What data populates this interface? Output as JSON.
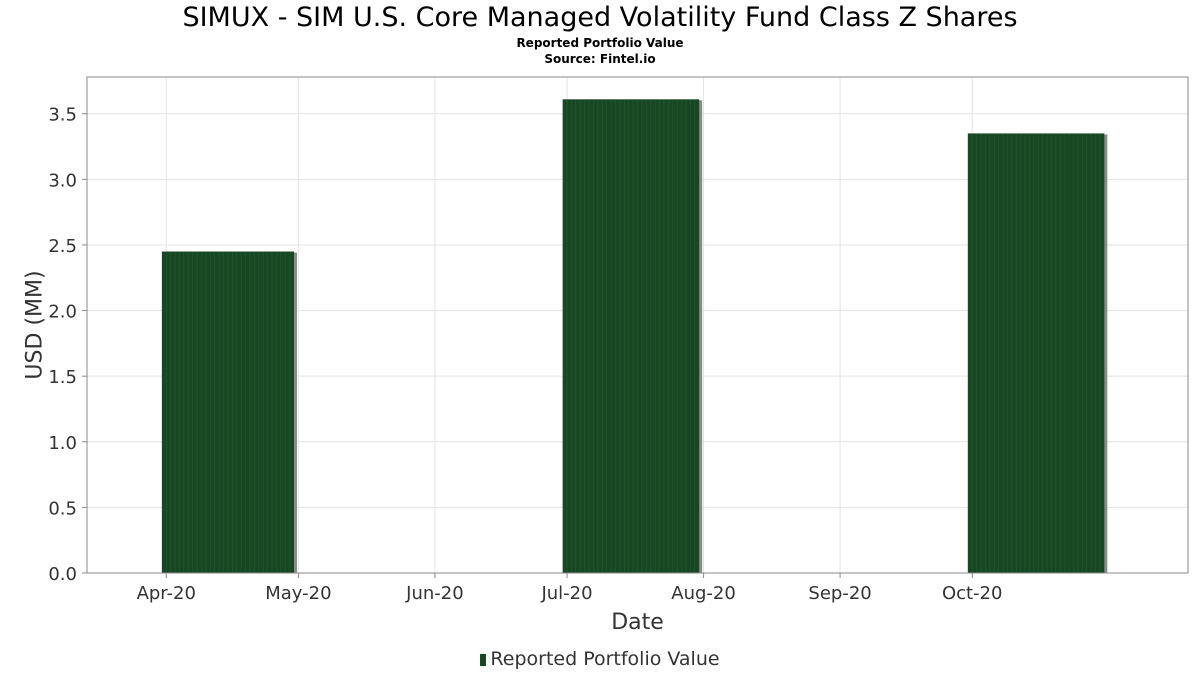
{
  "chart_data": {
    "type": "bar",
    "title": "SIMUX - SIM U.S. Core Managed Volatility Fund Class Z Shares",
    "subtitle": "Reported Portfolio Value",
    "source": "Source: Fintel.io",
    "xlabel": "Date",
    "ylabel": "USD (MM)",
    "x_ticks": [
      "Apr-20",
      "May-20",
      "Jun-20",
      "Jul-20",
      "Aug-20",
      "Sep-20",
      "Oct-20"
    ],
    "y_ticks": [
      "0.0",
      "0.5",
      "1.0",
      "1.5",
      "2.0",
      "2.5",
      "3.0",
      "3.5"
    ],
    "ylim": [
      0,
      3.78
    ],
    "grid": true,
    "legend_position": "bottom-center",
    "series": [
      {
        "name": "Reported Portfolio Value",
        "color": "#1a4723",
        "bars": [
          {
            "start": "2020-03-31",
            "end": "2020-04-30",
            "value": 2.45
          },
          {
            "start": "2020-06-30",
            "end": "2020-07-31",
            "value": 3.61
          },
          {
            "start": "2020-09-30",
            "end": "2020-10-31",
            "value": 3.35
          }
        ]
      }
    ]
  }
}
